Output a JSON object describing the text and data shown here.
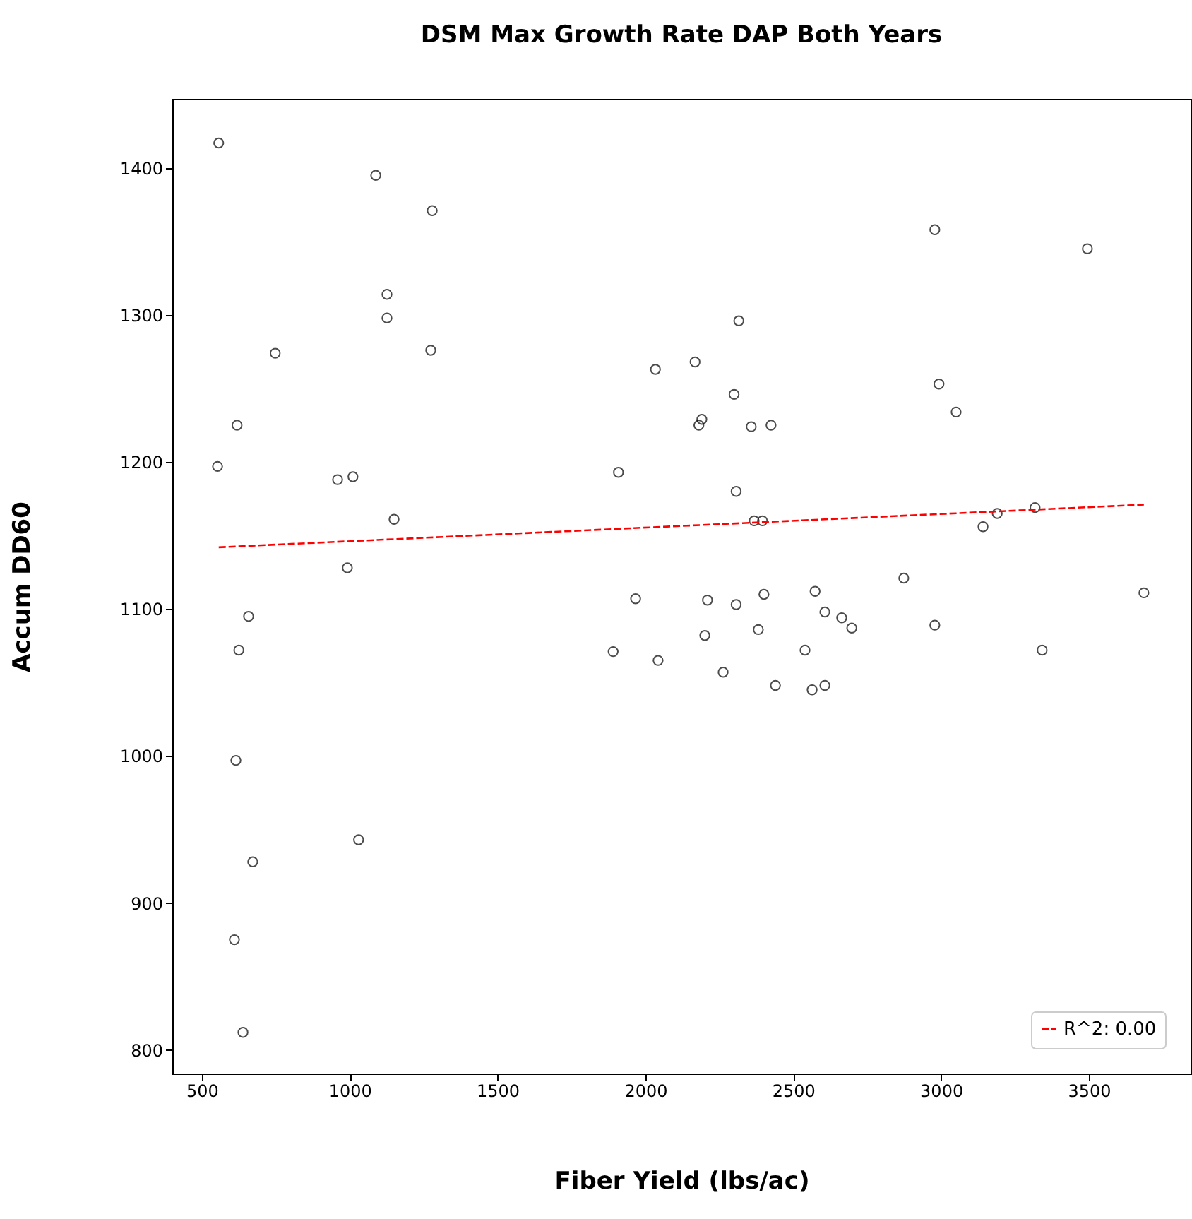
{
  "chart_data": {
    "type": "scatter",
    "title": "DSM Max Growth Rate DAP Both Years",
    "xlabel": "Fiber Yield (lbs/ac)",
    "ylabel": "Accum DD60",
    "xlim": [
      400,
      3844
    ],
    "ylim": [
      784,
      1447
    ],
    "xticks": [
      500,
      1000,
      1500,
      2000,
      2500,
      3000,
      3500
    ],
    "yticks": [
      800,
      900,
      1000,
      1100,
      1200,
      1300,
      1400
    ],
    "grid": false,
    "legend": "bottom right",
    "marker": "circle",
    "series": [
      {
        "color": "#000000",
        "x": [
          557,
          1088,
          1279,
          1126,
          1126,
          748,
          1274,
          619,
          553,
          959,
          1011,
          1150,
          992,
          658,
          625,
          615,
          672,
          1030,
          610,
          639,
          2034,
          2168,
          2316,
          2191,
          2181,
          2300,
          2358,
          2425,
          2307,
          2368,
          2396,
          1909,
          1967,
          1891,
          2043,
          2210,
          2201,
          2307,
          2263,
          2382,
          2401,
          2440,
          2540,
          2574,
          2607,
          2664,
          2698,
          2564,
          2607,
          2874,
          2979,
          2993,
          3051,
          2979,
          3142,
          3190,
          3318,
          3342,
          3495,
          3686
        ],
        "values": [
          1417,
          1395,
          1371,
          1314,
          1298,
          1274,
          1276,
          1225,
          1197,
          1188,
          1190,
          1161,
          1128,
          1095,
          1072,
          997,
          928,
          943,
          875,
          812,
          1263,
          1268,
          1296,
          1229,
          1225,
          1246,
          1224,
          1225,
          1180,
          1160,
          1160,
          1193,
          1107,
          1071,
          1065,
          1106,
          1082,
          1103,
          1057,
          1086,
          1110,
          1048,
          1072,
          1112,
          1098,
          1094,
          1087,
          1045,
          1048,
          1121,
          1358,
          1253,
          1234,
          1089,
          1156,
          1165,
          1169,
          1072,
          1345,
          1111
        ]
      },
      {
        "type": "line",
        "name": "R^2: 0.00",
        "color": "#ff0000",
        "line_style": "dashed",
        "marker": "none",
        "x": [
          557,
          3686
        ],
        "values": [
          1142,
          1171
        ]
      }
    ]
  }
}
